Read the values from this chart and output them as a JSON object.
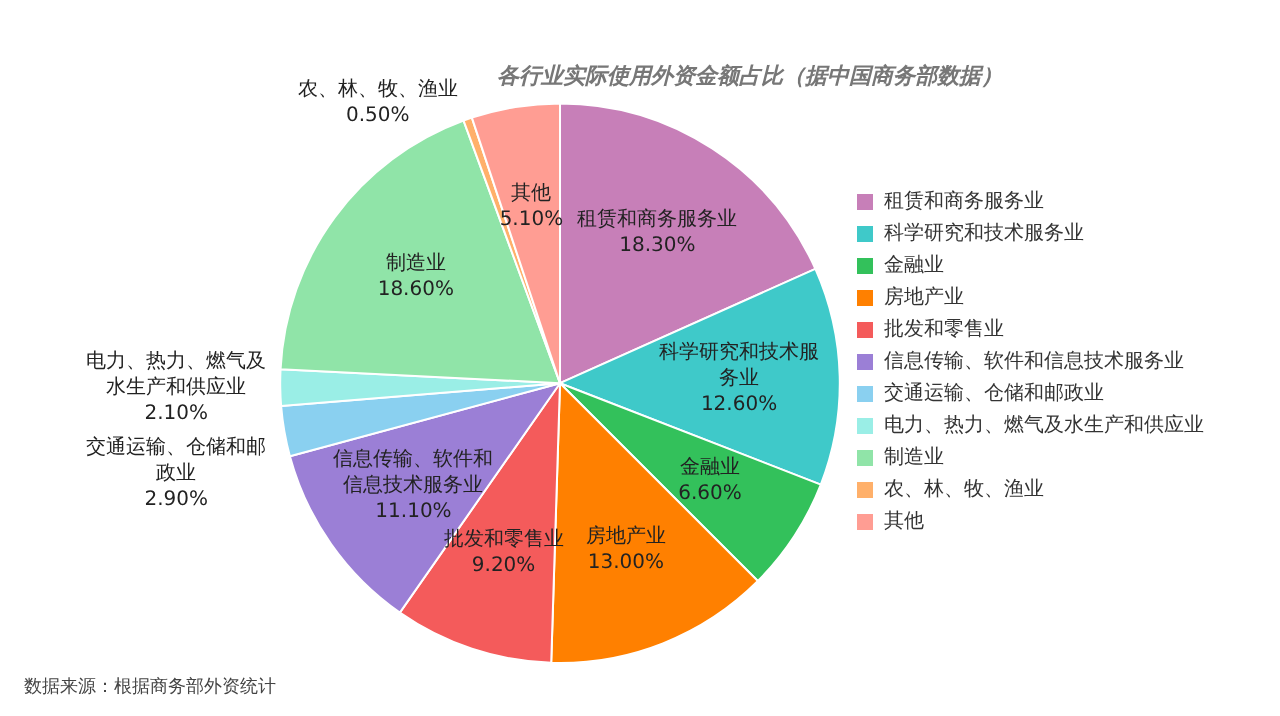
{
  "chart_data": {
    "type": "pie",
    "title": "各行业实际使用外资金额占比（据中国商务部数据）",
    "categories": [
      "租赁和商务服务业",
      "科学研究和技术服务业",
      "金融业",
      "房地产业",
      "批发和零售业",
      "信息传输、软件和信息技术服务业",
      "交通运输、仓储和邮政业",
      "电力、热力、燃气及水生产和供应业",
      "制造业",
      "农、林、牧、渔业",
      "其他"
    ],
    "values": [
      18.3,
      12.6,
      6.6,
      13.0,
      9.2,
      11.1,
      2.9,
      2.1,
      18.6,
      0.5,
      5.1
    ],
    "value_labels": [
      "18.30%",
      "12.60%",
      "6.60%",
      "13.00%",
      "9.20%",
      "11.10%",
      "2.90%",
      "2.10%",
      "18.60%",
      "0.50%",
      "5.10%"
    ],
    "colors": [
      "#c77fb8",
      "#3fc9c9",
      "#33c15b",
      "#ff8000",
      "#f45b5b",
      "#9b7fd6",
      "#8ad0f0",
      "#9aeee6",
      "#90e4a8",
      "#ffb06a",
      "#ff9d93"
    ],
    "legend": "right",
    "annotations": [
      "数据来源：根据商务部外资统计"
    ]
  }
}
